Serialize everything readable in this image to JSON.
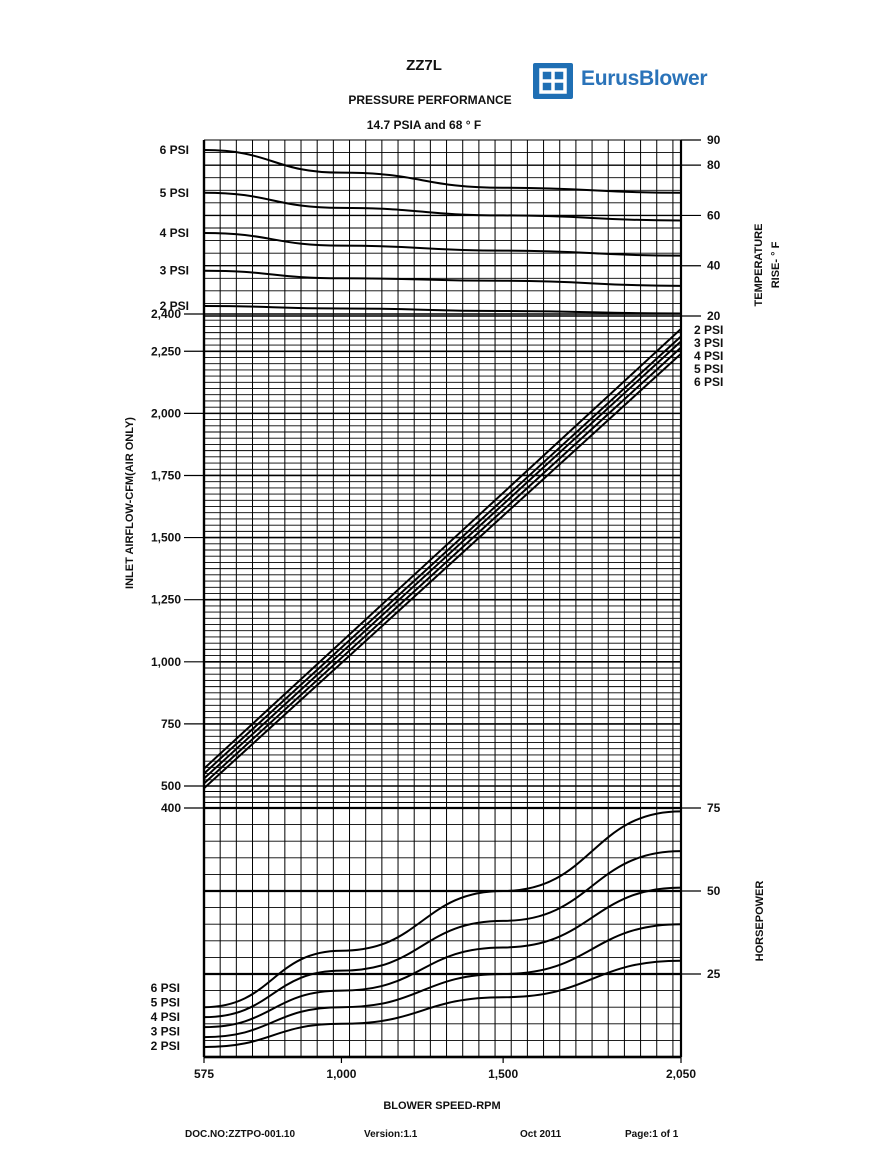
{
  "header": {
    "title": "ZZ7L",
    "subtitle": "PRESSURE PERFORMANCE",
    "conditions": "14.7 PSIA and 68 ° F"
  },
  "logo": {
    "text": "EurusBlower",
    "color": "#1f6fb4"
  },
  "footer": {
    "doc_no": "DOC.NO:ZZTPO-001.10",
    "version": "Version:1.1",
    "date": "Oct 2011",
    "page": "Page:1 of 1"
  },
  "chart_data": {
    "type": "line",
    "xlabel": "BLOWER SPEED-RPM",
    "x_range": [
      575,
      2050
    ],
    "x_ticks": [
      "575",
      "1,000",
      "1,500",
      "2,050"
    ],
    "x_tick_values": [
      575,
      1000,
      1500,
      2050
    ],
    "grid": true,
    "panels": {
      "temperature": {
        "ylabel": "TEMPERATURE\nRISE- ° F",
        "y_range": [
          20,
          90
        ],
        "y_ticks": [
          "20",
          "40",
          "60",
          "80",
          "90"
        ],
        "y_tick_values": [
          20,
          40,
          60,
          80,
          90
        ],
        "series": [
          {
            "name": "6 PSI",
            "x": [
              575,
              1000,
              1500,
              2050
            ],
            "y": [
              86,
              77,
              71,
              69
            ]
          },
          {
            "name": "5 PSI",
            "x": [
              575,
              1000,
              1500,
              2050
            ],
            "y": [
              69,
              63,
              60,
              58
            ]
          },
          {
            "name": "4 PSI",
            "x": [
              575,
              1000,
              1500,
              2050
            ],
            "y": [
              53,
              48,
              46,
              44
            ]
          },
          {
            "name": "3 PSI",
            "x": [
              575,
              1000,
              1500,
              2050
            ],
            "y": [
              38,
              35,
              34,
              32
            ]
          },
          {
            "name": "2 PSI",
            "x": [
              575,
              1000,
              1500,
              2050
            ],
            "y": [
              24,
              23,
              22,
              21
            ]
          }
        ]
      },
      "airflow": {
        "ylabel": "INLET AIRFLOW-CFM(AIR ONLY)",
        "y_range": [
          400,
          2400
        ],
        "y_ticks": [
          "400",
          "500",
          "750",
          "1,000",
          "1,250",
          "1,500",
          "1,750",
          "2,000",
          "2,250",
          "2,400"
        ],
        "y_tick_values": [
          400,
          500,
          750,
          1000,
          1250,
          1500,
          1750,
          2000,
          2250,
          2400
        ],
        "series": [
          {
            "name": "2 PSI",
            "x": [
              575,
              2050
            ],
            "y": [
              570,
              2340
            ]
          },
          {
            "name": "3 PSI",
            "x": [
              575,
              2050
            ],
            "y": [
              550,
              2310
            ]
          },
          {
            "name": "4 PSI",
            "x": [
              575,
              2050
            ],
            "y": [
              530,
              2290
            ]
          },
          {
            "name": "5 PSI",
            "x": [
              575,
              2050
            ],
            "y": [
              510,
              2265
            ]
          },
          {
            "name": "6 PSI",
            "x": [
              575,
              2050
            ],
            "y": [
              490,
              2240
            ]
          }
        ]
      },
      "horsepower": {
        "ylabel": "HORSEPOWER",
        "y_range": [
          0,
          75
        ],
        "y_ticks": [
          "25",
          "50",
          "75"
        ],
        "y_tick_values": [
          25,
          50,
          75
        ],
        "series": [
          {
            "name": "6 PSI",
            "x": [
              575,
              1000,
              1500,
              2050
            ],
            "y": [
              15,
              32,
              50,
              74
            ]
          },
          {
            "name": "5 PSI",
            "x": [
              575,
              1000,
              1500,
              2050
            ],
            "y": [
              12,
              26,
              41,
              62
            ]
          },
          {
            "name": "4 PSI",
            "x": [
              575,
              1000,
              1500,
              2050
            ],
            "y": [
              9,
              20,
              33,
              51
            ]
          },
          {
            "name": "3 PSI",
            "x": [
              575,
              1000,
              1500,
              2050
            ],
            "y": [
              6,
              15,
              25,
              40
            ]
          },
          {
            "name": "2 PSI",
            "x": [
              575,
              1000,
              1500,
              2050
            ],
            "y": [
              3,
              10,
              18,
              29
            ]
          }
        ]
      }
    }
  }
}
